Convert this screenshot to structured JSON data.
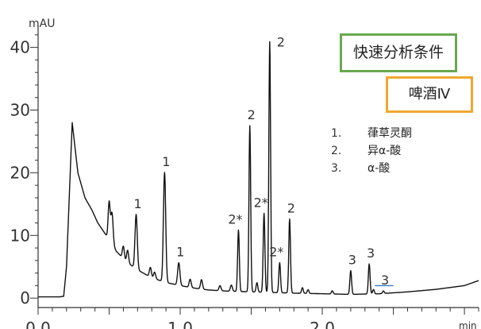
{
  "chart_data": {
    "type": "line",
    "title": "",
    "xlabel": "min",
    "ylabel": "mAU",
    "xlim": [
      0.0,
      3.1
    ],
    "ylim": [
      -1.5,
      43.5
    ],
    "x_ticks": [
      {
        "value": 0.0,
        "label": "0.0"
      },
      {
        "value": 1.0,
        "label": "1.0"
      },
      {
        "value": 2.0,
        "label": "2.0"
      }
    ],
    "y_ticks": [
      {
        "value": 0,
        "label": "0"
      },
      {
        "value": 10,
        "label": "10"
      },
      {
        "value": 20,
        "label": "20"
      },
      {
        "value": 30,
        "label": "30"
      },
      {
        "value": 40,
        "label": "40"
      }
    ],
    "grid": false,
    "line_color": "#111111",
    "baseline": {
      "points": [
        [
          0.0,
          0.2
        ],
        [
          0.15,
          0.2
        ],
        [
          0.18,
          0.3
        ],
        [
          0.2,
          5.0
        ],
        [
          0.24,
          28.0
        ],
        [
          0.28,
          20.0
        ],
        [
          0.33,
          16.0
        ],
        [
          0.38,
          14.0
        ],
        [
          0.42,
          12.0
        ],
        [
          0.48,
          10.0
        ],
        [
          0.55,
          7.5
        ],
        [
          0.62,
          5.8
        ],
        [
          0.7,
          4.5
        ],
        [
          0.78,
          3.5
        ],
        [
          0.88,
          2.6
        ],
        [
          1.0,
          2.0
        ],
        [
          1.1,
          1.6
        ],
        [
          1.2,
          1.3
        ],
        [
          1.35,
          1.1
        ],
        [
          1.5,
          1.0
        ],
        [
          1.65,
          0.9
        ],
        [
          1.8,
          0.8
        ],
        [
          2.0,
          0.7
        ],
        [
          2.2,
          0.6
        ],
        [
          2.4,
          0.7
        ],
        [
          2.6,
          1.0
        ],
        [
          2.8,
          1.4
        ],
        [
          3.0,
          2.0
        ],
        [
          3.1,
          2.8
        ]
      ]
    },
    "peaks": [
      {
        "x": 0.52,
        "height": 5.0,
        "width": 0.008
      },
      {
        "x": 0.5,
        "height": 6.0,
        "width": 0.007
      },
      {
        "x": 0.6,
        "height": 2.0,
        "width": 0.007
      },
      {
        "x": 0.63,
        "height": 2.0,
        "width": 0.007
      },
      {
        "x": 0.69,
        "height": 8.7,
        "width": 0.008,
        "label": "1"
      },
      {
        "x": 0.79,
        "height": 1.5,
        "width": 0.007
      },
      {
        "x": 0.82,
        "height": 1.0,
        "width": 0.007
      },
      {
        "x": 0.89,
        "height": 17.5,
        "width": 0.008,
        "label": "1"
      },
      {
        "x": 0.99,
        "height": 3.6,
        "width": 0.008,
        "label": "1"
      },
      {
        "x": 1.07,
        "height": 1.3,
        "width": 0.007
      },
      {
        "x": 1.15,
        "height": 1.5,
        "width": 0.007
      },
      {
        "x": 1.28,
        "height": 0.8,
        "width": 0.007
      },
      {
        "x": 1.36,
        "height": 1.0,
        "width": 0.007
      },
      {
        "x": 1.41,
        "height": 9.8,
        "width": 0.006,
        "label": "2*"
      },
      {
        "x": 1.49,
        "height": 26.5,
        "width": 0.006,
        "label": "2"
      },
      {
        "x": 1.54,
        "height": 1.5,
        "width": 0.006
      },
      {
        "x": 1.59,
        "height": 12.6,
        "width": 0.006,
        "label": "2*"
      },
      {
        "x": 1.63,
        "height": 40.0,
        "width": 0.006,
        "label": "2"
      },
      {
        "x": 1.7,
        "height": 4.8,
        "width": 0.006,
        "label": "2*"
      },
      {
        "x": 1.77,
        "height": 11.8,
        "width": 0.006,
        "label": "2"
      },
      {
        "x": 1.86,
        "height": 0.9,
        "width": 0.006
      },
      {
        "x": 1.9,
        "height": 0.6,
        "width": 0.006
      },
      {
        "x": 2.07,
        "height": 0.5,
        "width": 0.006
      },
      {
        "x": 2.2,
        "height": 3.8,
        "width": 0.006,
        "label": "3"
      },
      {
        "x": 2.33,
        "height": 4.8,
        "width": 0.006,
        "label": "3"
      },
      {
        "x": 2.36,
        "height": 0.7,
        "width": 0.006
      },
      {
        "x": 2.43,
        "height": 0.4,
        "width": 0.006,
        "label": "3"
      }
    ],
    "integration_marks": [
      {
        "x_start": 2.37,
        "x_end": 2.5,
        "y": 2.0,
        "color": "#3a78c0"
      }
    ],
    "legend": [
      {
        "number": "1.",
        "name": "葎草灵酮"
      },
      {
        "number": "2.",
        "name": "异α-酸"
      },
      {
        "number": "3.",
        "name": "α-酸"
      }
    ],
    "annotations": {
      "condition": "快速分析条件",
      "sample": "啤酒Ⅳ"
    },
    "box_colors": {
      "condition": "#6aa84f",
      "sample": "#f0a830"
    }
  }
}
